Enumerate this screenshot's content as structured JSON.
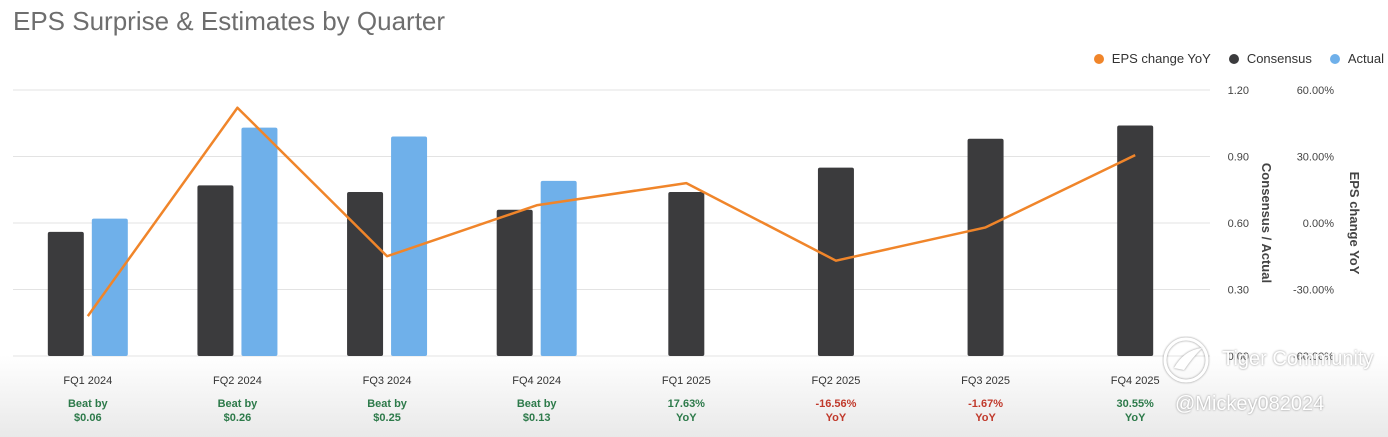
{
  "title": "EPS Surprise & Estimates by Quarter",
  "legend": [
    "EPS change YoY",
    "Consensus",
    "Actual"
  ],
  "colors": {
    "consensus": "#3b3b3d",
    "actual": "#6fb0ea",
    "yoy": "#f0852a",
    "beat": "#2d7a4a",
    "miss": "#c0392b"
  },
  "chart_data": {
    "type": "bar",
    "title": "EPS Surprise & Estimates by Quarter",
    "categories": [
      "FQ1 2024",
      "FQ2 2024",
      "FQ3 2024",
      "FQ4 2024",
      "FQ1 2025",
      "FQ2 2025",
      "FQ3 2025",
      "FQ4 2025"
    ],
    "series": [
      {
        "name": "Consensus",
        "type": "bar",
        "axis": "left",
        "values": [
          0.56,
          0.77,
          0.74,
          0.66,
          0.74,
          0.85,
          0.98,
          1.04
        ]
      },
      {
        "name": "Actual",
        "type": "bar",
        "axis": "left",
        "values": [
          0.62,
          1.03,
          0.99,
          0.79,
          null,
          null,
          null,
          null
        ]
      },
      {
        "name": "EPS change YoY",
        "type": "line",
        "axis": "right",
        "values": [
          -42,
          52,
          -15,
          8,
          18,
          -17,
          -2,
          30.6
        ]
      }
    ],
    "ylabel_left": "Consensus / Actual",
    "ylabel_right": "EPS change YoY",
    "ylim_left": [
      0,
      1.2
    ],
    "ylim_right": [
      -60,
      60
    ],
    "yticks_left": [
      "1.20",
      "0.90",
      "0.60",
      "0.30",
      "0.00"
    ],
    "yticks_right": [
      "60.00%",
      "30.00%",
      "0.00%",
      "-30.00%",
      "-60.00%"
    ],
    "annotations": [
      {
        "line1": "Beat by",
        "line2": "$0.06",
        "kind": "beat"
      },
      {
        "line1": "Beat by",
        "line2": "$0.26",
        "kind": "beat"
      },
      {
        "line1": "Beat by",
        "line2": "$0.25",
        "kind": "beat"
      },
      {
        "line1": "Beat by",
        "line2": "$0.13",
        "kind": "beat"
      },
      {
        "line1": "17.63%",
        "line2": "YoY",
        "kind": "beat"
      },
      {
        "line1": "-16.56%",
        "line2": "YoY",
        "kind": "miss"
      },
      {
        "line1": "-1.67%",
        "line2": "YoY",
        "kind": "miss"
      },
      {
        "line1": "30.55%",
        "line2": "YoY",
        "kind": "beat"
      }
    ],
    "grid": true,
    "legend_position": "top-right"
  },
  "watermark": {
    "name": "Tiger Community",
    "handle": "@Mickey082024"
  }
}
